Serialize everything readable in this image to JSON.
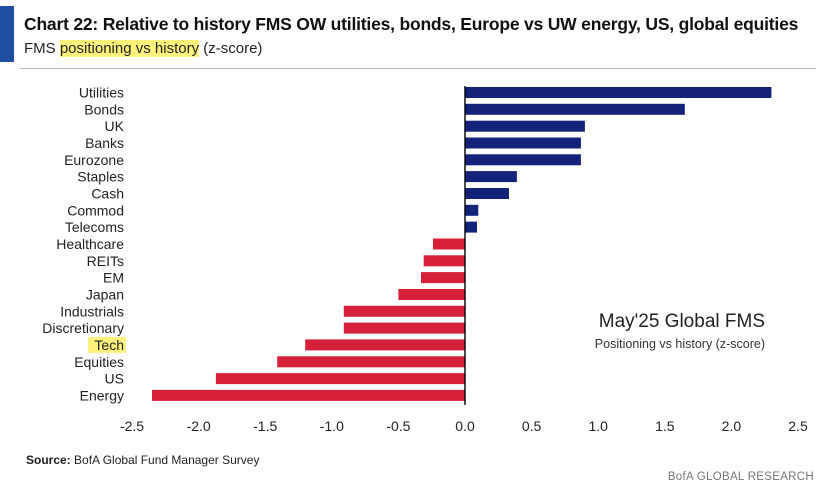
{
  "header": {
    "title": "Chart 22: Relative to history FMS OW utilities, bonds, Europe vs UW energy, US, global equities",
    "subtitle_prefix": "FMS ",
    "subtitle_highlight": "positioning vs history",
    "subtitle_suffix": " (z-score)"
  },
  "annotation": {
    "title": "May'25 Global FMS",
    "subtitle": "Positioning vs history (z-score)"
  },
  "footer": {
    "source_label": "Source:",
    "source_text": " BofA Global Fund Manager Survey",
    "brand": "BofA GLOBAL RESEARCH"
  },
  "colors": {
    "positive": "#13237a",
    "negative": "#d6203a",
    "accent": "#1f4ea3",
    "highlight": "#fff27a"
  },
  "chart_data": {
    "type": "bar",
    "orientation": "horizontal",
    "title": "Chart 22: Relative to history FMS OW utilities, bonds, Europe vs UW energy, US, global equities",
    "xlabel": "",
    "ylabel": "",
    "xlim": [
      -2.5,
      2.5
    ],
    "xticks": [
      -2.5,
      -2.0,
      -1.5,
      -1.0,
      -0.5,
      0.0,
      0.5,
      1.0,
      1.5,
      2.0,
      2.5
    ],
    "xtick_labels": [
      "-2.5",
      "-2.0",
      "-1.5",
      "-1.0",
      "-0.5",
      "0.0",
      "0.5",
      "1.0",
      "1.5",
      "2.0",
      "2.5"
    ],
    "categories": [
      "Utilities",
      "Bonds",
      "UK",
      "Banks",
      "Eurozone",
      "Staples",
      "Cash",
      "Commod",
      "Telecoms",
      "Healthcare",
      "REITs",
      "EM",
      "Japan",
      "Industrials",
      "Discretionary",
      "Tech",
      "Equities",
      "US",
      "Energy"
    ],
    "values": [
      2.3,
      1.65,
      0.9,
      0.87,
      0.87,
      0.39,
      0.33,
      0.1,
      0.09,
      -0.24,
      -0.31,
      -0.33,
      -0.5,
      -0.91,
      -0.91,
      -1.2,
      -1.41,
      -1.87,
      -2.35
    ],
    "highlighted_category": "Tech",
    "grid": false
  }
}
